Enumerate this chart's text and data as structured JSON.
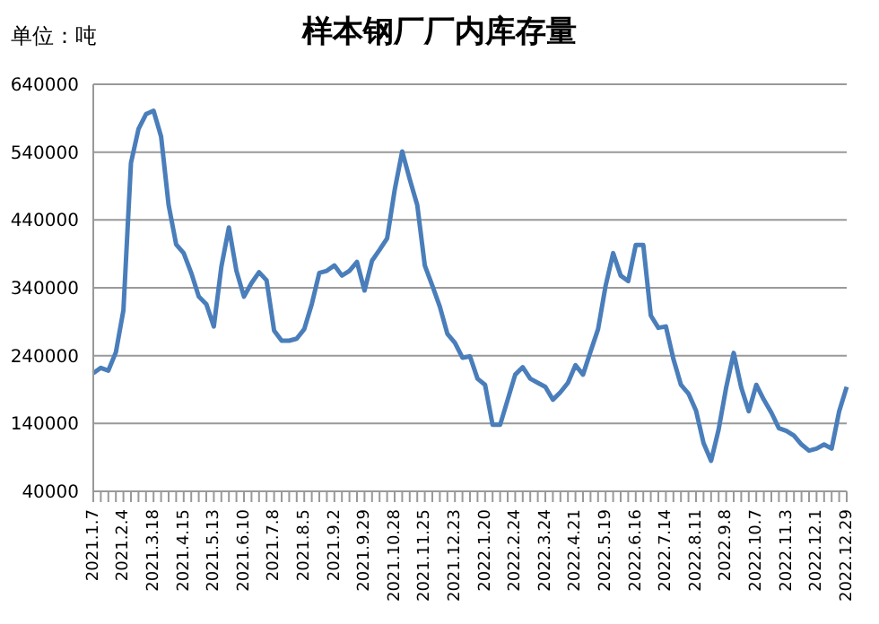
{
  "chart_data": {
    "type": "line",
    "title": "样本钢厂厂内库存量",
    "annotations": [
      "单位：吨"
    ],
    "categories": [
      "2021.1.7",
      null,
      null,
      null,
      "2021.2.4",
      null,
      null,
      null,
      "2021.3.18",
      null,
      null,
      null,
      "2021.4.15",
      null,
      null,
      null,
      "2021.5.13",
      null,
      null,
      null,
      "2021.6.10",
      null,
      null,
      null,
      "2021.7.8",
      null,
      null,
      null,
      "2021.8.5",
      null,
      null,
      null,
      "2021.9.2",
      null,
      null,
      null,
      "2021.9.29",
      null,
      null,
      null,
      "2021.10.28",
      null,
      null,
      null,
      "2021.11.25",
      null,
      null,
      null,
      "2021.12.23",
      null,
      null,
      null,
      "2022.1.20",
      null,
      null,
      null,
      "2022.2.24",
      null,
      null,
      null,
      "2022.3.24",
      null,
      null,
      null,
      "2022.4.21",
      null,
      null,
      null,
      "2022.5.19",
      null,
      null,
      null,
      "2022.6.16",
      null,
      null,
      null,
      "2022.7.14",
      null,
      null,
      null,
      "2022.8.11",
      null,
      null,
      null,
      "2022.9.8",
      null,
      null,
      null,
      "2022.10.7",
      null,
      null,
      null,
      "2022.11.3",
      null,
      null,
      null,
      "2022.12.1",
      null,
      null,
      null,
      "2022.12.29"
    ],
    "series": [
      {
        "color": "#4a7ebb",
        "values": [
          214000,
          222000,
          218000,
          245000,
          307000,
          524000,
          574000,
          596000,
          601000,
          563000,
          462000,
          404000,
          391000,
          362000,
          327000,
          316000,
          283000,
          371000,
          429000,
          365000,
          327000,
          347000,
          363000,
          351000,
          277000,
          262000,
          262000,
          265000,
          279000,
          316000,
          362000,
          365000,
          373000,
          358000,
          365000,
          378000,
          336000,
          380000,
          396000,
          413000,
          484000,
          541000,
          500000,
          462000,
          373000,
          343000,
          312000,
          272000,
          259000,
          237000,
          239000,
          206000,
          197000,
          138000,
          138000,
          175000,
          212000,
          223000,
          206000,
          200000,
          194000,
          175000,
          186000,
          200000,
          226000,
          212000,
          246000,
          279000,
          343000,
          391000,
          358000,
          350000,
          403000,
          403000,
          299000,
          281000,
          283000,
          235000,
          197000,
          184000,
          159000,
          111000,
          85000,
          131000,
          193000,
          244000,
          193000,
          158000,
          197000,
          175000,
          156000,
          133000,
          129000,
          122000,
          109000,
          100000,
          103000,
          109000,
          103000,
          158000,
          194000
        ]
      }
    ],
    "ylim": [
      40000,
      640000
    ],
    "yticks": [
      40000,
      140000,
      240000,
      340000,
      440000,
      540000,
      640000
    ],
    "grid": "y",
    "marker": "none",
    "line_style": "solid"
  }
}
